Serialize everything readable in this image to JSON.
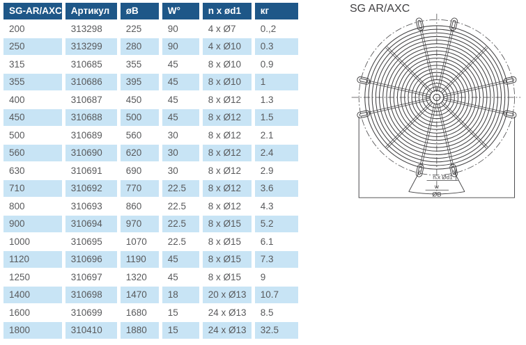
{
  "drawing": {
    "title": "SG AR/AXC",
    "labels": {
      "holes": "n x Ød1",
      "width": "w",
      "outer_diameter": "ØB"
    }
  },
  "table": {
    "columns": [
      "SG-AR/AXC",
      "Артикул",
      "øB",
      "W°",
      "n x ød1",
      "кг"
    ],
    "rows": [
      [
        "200",
        "313298",
        "225",
        "90",
        "4 x Ø7",
        "0.,2"
      ],
      [
        "250",
        "313299",
        "280",
        "90",
        "4 x Ø10",
        "0.3"
      ],
      [
        "315",
        "310685",
        "355",
        "45",
        "8 x Ø10",
        "0.9"
      ],
      [
        "355",
        "310686",
        "395",
        "45",
        "8 x Ø10",
        "1"
      ],
      [
        "400",
        "310687",
        "450",
        "45",
        "8 x Ø12",
        "1.3"
      ],
      [
        "450",
        "310688",
        "500",
        "45",
        "8 x Ø12",
        "1.5"
      ],
      [
        "500",
        "310689",
        "560",
        "30",
        "8 x Ø12",
        "2.1"
      ],
      [
        "560",
        "310690",
        "620",
        "30",
        "8 x Ø12",
        "2.4"
      ],
      [
        "630",
        "310691",
        "690",
        "30",
        "8 x Ø12",
        "2.9"
      ],
      [
        "710",
        "310692",
        "770",
        "22.5",
        "8 x Ø12",
        "3.6"
      ],
      [
        "800",
        "310693",
        "860",
        "22.5",
        "8 x Ø12",
        "4.3"
      ],
      [
        "900",
        "310694",
        "970",
        "22.5",
        "8 x Ø15",
        "5.2"
      ],
      [
        "1000",
        "310695",
        "1070",
        "22.5",
        "8 x Ø15",
        "6.1"
      ],
      [
        "1120",
        "310696",
        "1190",
        "45",
        "8 x Ø15",
        "7.3"
      ],
      [
        "1250",
        "310697",
        "1320",
        "45",
        "8 x Ø15",
        "9"
      ],
      [
        "1400",
        "310698",
        "1470",
        "18",
        "20 x Ø13",
        "10.7"
      ],
      [
        "1600",
        "310699",
        "1680",
        "15",
        "24 x Ø13",
        "8.5"
      ],
      [
        "1800",
        "310410",
        "1880",
        "15",
        "24 x Ø13",
        "32.5"
      ]
    ]
  },
  "colors": {
    "header_bg": "#1e5788",
    "header_text": "#ffffff",
    "row_alt_bg": "#c8e4f5",
    "row_text": "#58595b",
    "drawing_stroke": "#414042"
  }
}
